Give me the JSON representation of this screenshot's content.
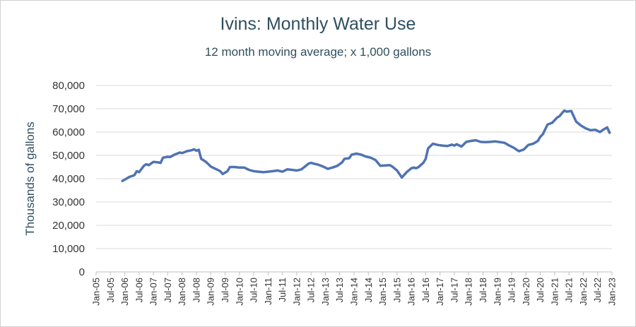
{
  "chart_data": {
    "type": "line",
    "title": "Ivins: Monthly Water Use",
    "subtitle": "12 month moving average; x 1,000 gallons",
    "xlabel": "",
    "ylabel": "Thousands of gallons",
    "ylim": [
      0,
      80000
    ],
    "yticks": [
      "0",
      "10,000",
      "20,000",
      "30,000",
      "40,000",
      "50,000",
      "60,000",
      "70,000",
      "80,000"
    ],
    "categories": [
      "Jan-05",
      "Jul-05",
      "Jan-06",
      "Jul-06",
      "Jan-07",
      "Jul-07",
      "Jan-08",
      "Jul-08",
      "Jan-09",
      "Jul-09",
      "Jan-10",
      "Jul-10",
      "Jan-11",
      "Jul-11",
      "Jan-12",
      "Jul-12",
      "Jan-13",
      "Jul-13",
      "Jan-14",
      "Jul-14",
      "Jan-15",
      "Jul-15",
      "Jan-16",
      "Jul-16",
      "Jan-17",
      "Jul-17",
      "Jan-18",
      "Jul-18",
      "Jan-19",
      "Jul-19",
      "Jan-20",
      "Jul-20",
      "Jan-21",
      "Jul-21",
      "Jan-22",
      "Jul-22",
      "Jan-23"
    ],
    "grid": true,
    "legend": "none",
    "colors": {
      "line": "#4f73b3",
      "grid": "#d9d9d9",
      "axis": "#bfbfbf"
    },
    "series": [
      {
        "x": [
          "Dec-05",
          "Mar-06",
          "May-06",
          "Jun-06",
          "Jul-06",
          "Sep-06",
          "Oct-06",
          "Nov-06",
          "Jan-07",
          "Mar-07",
          "Apr-07",
          "May-07",
          "Jul-07",
          "Aug-07",
          "Oct-07",
          "Dec-07",
          "Jan-08",
          "Mar-08",
          "May-08",
          "Jun-08",
          "Jul-08",
          "Aug-08",
          "Sep-08",
          "Nov-08",
          "Jan-09",
          "Mar-09",
          "May-09",
          "Jun-09",
          "Aug-09",
          "Sep-09",
          "Nov-09",
          "Jan-10",
          "Mar-10",
          "May-10",
          "Jul-10",
          "Sep-10",
          "Nov-10",
          "Jan-11",
          "Mar-11",
          "May-11",
          "Jul-11",
          "Sep-11",
          "Nov-11",
          "Jan-12",
          "Mar-12",
          "Jun-12",
          "Jul-12",
          "Aug-12",
          "Oct-12",
          "Dec-12",
          "Feb-13",
          "Apr-13",
          "Jun-13",
          "Aug-13",
          "Sep-13",
          "Nov-13",
          "Dec-13",
          "Feb-14",
          "Apr-14",
          "Jun-14",
          "Aug-14",
          "Sep-14",
          "Oct-14",
          "Dec-14",
          "Feb-15",
          "Apr-15",
          "May-15",
          "Jul-15",
          "Sep-15",
          "Nov-15",
          "Jan-16",
          "Feb-16",
          "Mar-16",
          "Apr-16",
          "Jun-16",
          "Jul-16",
          "Aug-16",
          "Oct-16",
          "Dec-16",
          "Feb-17",
          "Apr-17",
          "Jun-17",
          "Jul-17",
          "Aug-17",
          "Oct-17",
          "Dec-17",
          "Feb-18",
          "Apr-18",
          "Jun-18",
          "Aug-18",
          "Oct-18",
          "Dec-18",
          "Feb-19",
          "Apr-19",
          "Jun-19",
          "Aug-19",
          "Oct-19",
          "Dec-19",
          "Feb-20",
          "Apr-20",
          "Jun-20",
          "Jul-20",
          "Aug-20",
          "Oct-20",
          "Dec-20",
          "Feb-21",
          "Mar-21",
          "Apr-21",
          "May-21",
          "Jun-21",
          "Aug-21",
          "Oct-21",
          "Dec-21",
          "Feb-22",
          "Apr-22",
          "Jun-22",
          "Aug-22",
          "Sep-22",
          "Nov-22",
          "Dec-22"
        ],
        "y": [
          39000,
          40800,
          41500,
          43200,
          42800,
          45500,
          46200,
          45800,
          47200,
          47000,
          46800,
          49000,
          49400,
          49300,
          50400,
          51200,
          51000,
          51800,
          52200,
          52600,
          52000,
          52400,
          48500,
          47200,
          45200,
          44200,
          43200,
          42000,
          43200,
          45000,
          45000,
          44800,
          44800,
          43800,
          43200,
          43000,
          42800,
          43000,
          43200,
          43500,
          43000,
          44000,
          43800,
          43500,
          44000,
          46500,
          46800,
          46500,
          46000,
          45200,
          44200,
          44800,
          45500,
          47000,
          48500,
          48800,
          50300,
          50800,
          50300,
          49500,
          49000,
          48500,
          48000,
          45500,
          45700,
          45800,
          45200,
          43500,
          40500,
          42800,
          44500,
          44800,
          44500,
          45000,
          46800,
          48500,
          53000,
          55000,
          54500,
          54200,
          54000,
          54600,
          54200,
          54800,
          53800,
          55800,
          56200,
          56500,
          55800,
          55700,
          55800,
          56000,
          55700,
          55400,
          54200,
          53200,
          51800,
          52500,
          54500,
          55000,
          56200,
          58000,
          59000,
          63200,
          64000,
          66200,
          66800,
          68000,
          69200,
          68800,
          69000,
          64500,
          62800,
          61600,
          60800,
          61000,
          60000,
          60800,
          62000,
          59700
        ]
      }
    ]
  }
}
